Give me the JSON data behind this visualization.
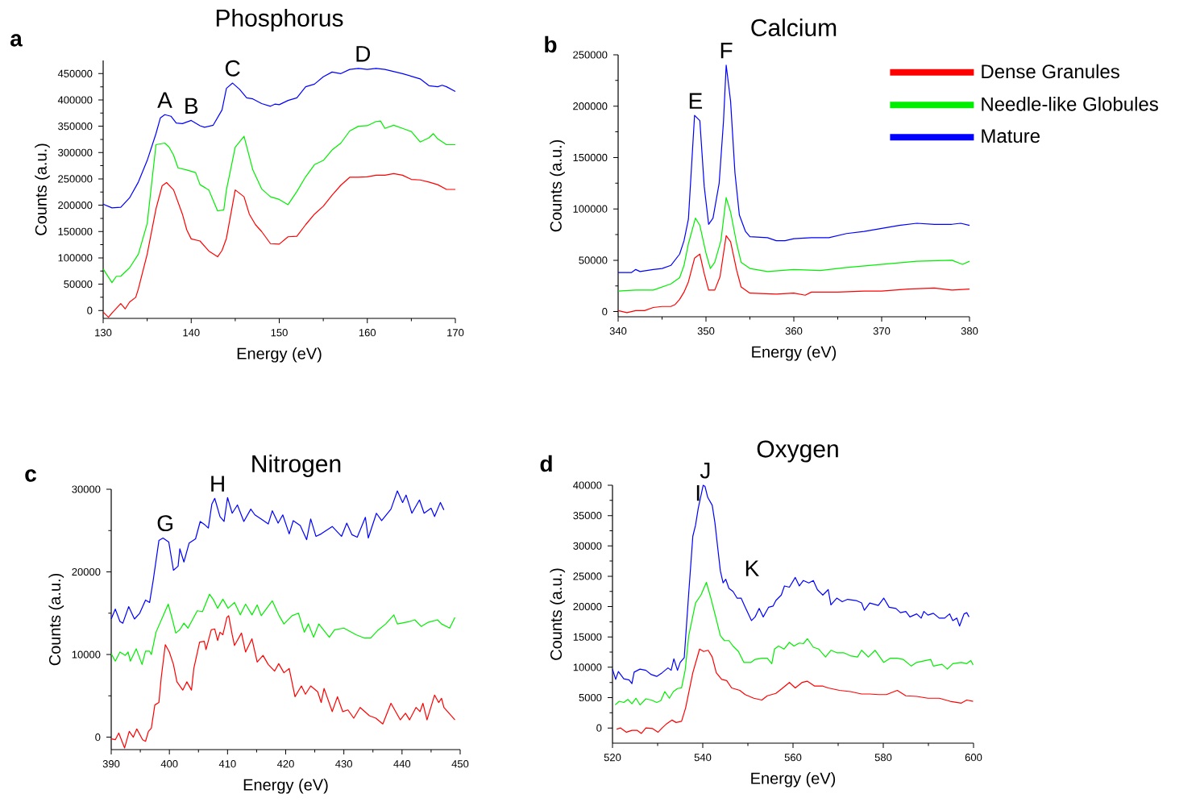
{
  "chart_data": [
    {
      "type": "line",
      "title": "Phosphorus",
      "xlabel": "Energy (eV)",
      "ylabel": "Counts (a.u.)",
      "xlim": [
        130,
        170
      ],
      "ylim": [
        -15000,
        475000
      ],
      "xticks": [
        130,
        140,
        150,
        160,
        170
      ],
      "yticks": [
        0,
        50000,
        100000,
        150000,
        200000,
        250000,
        300000,
        350000,
        400000,
        450000
      ],
      "annotations": [
        "a",
        {
          "text": "A",
          "x": 137,
          "y": 372000
        },
        {
          "text": "B",
          "x": 140,
          "y": 361000
        },
        {
          "text": "C",
          "x": 144.7,
          "y": 432000
        },
        {
          "text": "D",
          "x": 159.5,
          "y": 460000
        }
      ],
      "series": [
        {
          "color": "#ff0000",
          "x": [
            130,
            130.6,
            131,
            132,
            132.5,
            133,
            133.7,
            134,
            135,
            136,
            136.7,
            137.2,
            138,
            139,
            139.5,
            140,
            141,
            142,
            143,
            143.5,
            144,
            145,
            146,
            146.6,
            147.3,
            148,
            149,
            150,
            151,
            152,
            153,
            154,
            155,
            156,
            157,
            158,
            159,
            160,
            161,
            162,
            163,
            164,
            165,
            166,
            167,
            168,
            169,
            170
          ],
          "values": [
            -3000,
            -13000,
            -5000,
            13000,
            3000,
            16000,
            25000,
            41000,
            107000,
            193000,
            237000,
            243000,
            229000,
            183000,
            153000,
            136000,
            132000,
            113000,
            102000,
            114000,
            137000,
            229000,
            216000,
            183000,
            163000,
            150000,
            127000,
            126000,
            140000,
            141000,
            163000,
            183000,
            198000,
            219000,
            238000,
            253000,
            253000,
            254000,
            257000,
            257000,
            260000,
            257000,
            249000,
            248000,
            244000,
            239000,
            230000,
            230000
          ]
        },
        {
          "color": "#00ee00",
          "x": [
            130,
            131,
            131.5,
            132,
            133,
            134,
            135,
            136,
            137,
            137.5,
            138,
            138.5,
            139.5,
            140.5,
            141,
            142,
            142.5,
            143,
            143.7,
            144,
            145,
            146,
            147,
            148,
            149,
            150,
            151,
            152,
            153,
            154,
            155,
            156,
            157,
            158,
            159,
            160,
            161,
            161.5,
            162,
            163,
            164,
            165,
            166,
            167,
            167.5,
            168,
            169,
            170
          ],
          "values": [
            79000,
            53000,
            65000,
            65000,
            81000,
            107000,
            165000,
            315000,
            318000,
            310000,
            295000,
            271000,
            267000,
            262000,
            239000,
            229000,
            209000,
            189000,
            191000,
            229000,
            310000,
            331000,
            267000,
            231000,
            216000,
            211000,
            201000,
            226000,
            254000,
            277000,
            285000,
            305000,
            318000,
            341000,
            350000,
            351000,
            359000,
            360000,
            346000,
            352000,
            346000,
            340000,
            320000,
            328000,
            336000,
            326000,
            315000,
            315000
          ]
        },
        {
          "color": "#0000ff",
          "x": [
            130,
            131,
            132,
            133,
            134,
            135,
            136,
            136.5,
            137,
            137.7,
            138.3,
            139,
            140,
            141,
            141.5,
            142.5,
            143.5,
            144,
            144.7,
            145.5,
            146.3,
            147,
            148,
            149,
            149.5,
            150,
            151,
            152,
            153,
            154,
            155,
            156,
            157,
            158,
            159,
            160,
            161,
            162,
            163,
            164,
            165,
            166,
            167,
            168,
            168.5,
            169,
            170
          ],
          "values": [
            202000,
            195000,
            196000,
            214000,
            244000,
            285000,
            336000,
            366000,
            372000,
            369000,
            356000,
            355000,
            361000,
            351000,
            348000,
            352000,
            381000,
            422000,
            432000,
            420000,
            404000,
            402000,
            393000,
            388000,
            392000,
            391000,
            399000,
            404000,
            425000,
            430000,
            444000,
            453000,
            450000,
            458000,
            460000,
            458000,
            460000,
            458000,
            454000,
            450000,
            445000,
            440000,
            427000,
            425000,
            428000,
            425000,
            416000
          ]
        }
      ]
    },
    {
      "type": "line",
      "title": "Calcium",
      "xlabel": "Energy (eV)",
      "ylabel": "Counts (a.u.)",
      "legend": "top right",
      "xlim": [
        340,
        380
      ],
      "ylim": [
        -5000,
        250000
      ],
      "xticks": [
        340,
        350,
        360,
        370,
        380
      ],
      "yticks": [
        0,
        50000,
        100000,
        150000,
        200000,
        250000
      ],
      "annotations": [
        "b",
        {
          "text": "E",
          "x": 348.8,
          "y": 191000
        },
        {
          "text": "F",
          "x": 352.3,
          "y": 240000
        }
      ],
      "series": [
        {
          "name": "Dense Granules",
          "color": "#ff0000",
          "x": [
            340,
            341,
            342,
            343,
            344,
            345,
            346,
            346.5,
            347,
            347.5,
            348,
            348.7,
            349.3,
            349.8,
            350.3,
            351,
            351.6,
            352.3,
            352.8,
            353.5,
            354,
            355,
            358,
            360,
            361.3,
            362,
            365,
            368,
            370,
            373,
            376,
            378,
            380
          ],
          "values": [
            1000,
            -1000,
            1000,
            1000,
            4000,
            5000,
            5000,
            7000,
            12000,
            19000,
            29000,
            52000,
            56000,
            37000,
            21000,
            21000,
            34000,
            74000,
            68000,
            40000,
            24000,
            18000,
            17000,
            18000,
            16000,
            19000,
            19000,
            20000,
            20000,
            22000,
            23000,
            21000,
            22000
          ]
        },
        {
          "name": "Needle-like Globules",
          "color": "#00ee00",
          "x": [
            340,
            342,
            344,
            346,
            347,
            347.5,
            348,
            348.8,
            349.3,
            350,
            350.5,
            351,
            351.7,
            352.3,
            352.8,
            353.5,
            354,
            355,
            357,
            360,
            363,
            366,
            370,
            374,
            378,
            379.2,
            380
          ],
          "values": [
            20000,
            21000,
            21000,
            27000,
            33000,
            45000,
            66000,
            91000,
            84000,
            57000,
            42000,
            48000,
            69000,
            111000,
            97000,
            66000,
            48000,
            42000,
            39000,
            41000,
            40000,
            43000,
            46000,
            49000,
            50000,
            46000,
            49000
          ]
        },
        {
          "name": "Mature",
          "color": "#0000ff",
          "x": [
            340,
            341.5,
            342,
            342.5,
            344,
            345,
            346,
            347,
            347.5,
            348,
            348.7,
            349.3,
            349.8,
            350.3,
            350.8,
            351.5,
            352,
            352.3,
            352.8,
            353.3,
            353.8,
            354.5,
            355,
            357,
            358,
            359,
            360,
            362,
            364,
            366,
            368,
            370,
            372,
            374,
            376,
            378,
            379,
            380
          ],
          "values": [
            38000,
            38000,
            41000,
            39000,
            41000,
            42000,
            45000,
            56000,
            69000,
            90000,
            191000,
            186000,
            122000,
            85000,
            91000,
            125000,
            186000,
            240000,
            205000,
            135000,
            94000,
            78000,
            73000,
            72000,
            69000,
            69000,
            71000,
            72000,
            72000,
            76000,
            78000,
            81000,
            84000,
            86000,
            85000,
            85000,
            86000,
            84000
          ]
        }
      ]
    },
    {
      "type": "line",
      "title": "Nitrogen",
      "xlabel": "Energy (eV)",
      "ylabel": "Counts (a.u.)",
      "xlim": [
        390,
        450
      ],
      "ylim": [
        -1500,
        30000
      ],
      "xticks": [
        390,
        400,
        410,
        420,
        430,
        440,
        450
      ],
      "yticks": [
        0,
        10000,
        20000,
        30000
      ],
      "annotations": [
        "c",
        {
          "text": "G",
          "x": 399.3,
          "y": 24100
        },
        {
          "text": "H",
          "x": 408.3,
          "y": 28900
        }
      ],
      "series": [
        {
          "color": "#ff0000",
          "x": [
            390.0,
            390.7,
            391.3,
            392.3,
            393.1,
            393.8,
            394.4,
            395.4,
            395.9,
            396.4,
            396.9,
            397.5,
            398.2,
            398.6,
            399.3,
            400.0,
            400.7,
            401.3,
            402.3,
            403.0,
            403.8,
            404.2,
            405.2,
            406.0,
            406.3,
            407.2,
            407.8,
            408.3,
            408.7,
            409.2,
            409.9,
            410.2,
            410.8,
            411.2,
            412.4,
            413.1,
            414.2,
            415.1,
            416.1,
            417.0,
            418.1,
            418.8,
            419.7,
            420.6,
            421.6,
            422.7,
            423.4,
            424.3,
            425.5,
            426.1,
            426.6,
            428.0,
            428.9,
            429.8,
            430.7,
            431.7,
            432.8,
            434.4,
            435.5,
            436.7,
            438.1,
            439.7,
            440.6,
            441.3,
            442.4,
            443.1,
            443.6,
            444.3,
            445.6,
            446.3,
            446.8,
            447.2,
            449.1
          ],
          "values": [
            -200,
            -300,
            500,
            -1300,
            700,
            0,
            1000,
            -300,
            -500,
            700,
            1100,
            3900,
            4200,
            7200,
            11200,
            10300,
            8800,
            6700,
            5700,
            6700,
            5700,
            8300,
            11500,
            11600,
            10600,
            13000,
            13100,
            11700,
            12700,
            12400,
            14500,
            14700,
            12400,
            11100,
            12600,
            10300,
            11900,
            9100,
            9900,
            8800,
            8000,
            8900,
            7800,
            8300,
            4900,
            6200,
            5200,
            6200,
            5500,
            4200,
            5900,
            3100,
            4900,
            3100,
            3300,
            2300,
            3600,
            2600,
            2300,
            1600,
            4100,
            2100,
            2900,
            2100,
            3600,
            3100,
            4100,
            2100,
            5100,
            4200,
            4700,
            3600,
            2100
          ]
        },
        {
          "color": "#00ee00",
          "x": [
            390,
            390.7,
            391.5,
            392.4,
            392.9,
            393.3,
            394.3,
            395.3,
            395.9,
            396.6,
            396.9,
            397.7,
            399.8,
            400.5,
            401.1,
            401.8,
            402.5,
            403.2,
            404.8,
            405.7,
            406.9,
            407.6,
            408.3,
            409.2,
            410.1,
            411.2,
            412.2,
            413.1,
            414.2,
            415.1,
            415.8,
            417.7,
            418.8,
            419.7,
            421.1,
            422.2,
            423.2,
            423.9,
            424.8,
            425.7,
            427.5,
            428.4,
            430.0,
            432.1,
            433.5,
            434.6,
            435.8,
            437.2,
            438.6,
            439.2,
            441.3,
            442.2,
            443.3,
            444.5,
            446.1,
            446.8,
            448.2,
            449.1
          ],
          "values": [
            10100,
            9200,
            10300,
            9900,
            10300,
            9200,
            10700,
            8800,
            10400,
            10400,
            10000,
            12700,
            16100,
            14300,
            12600,
            13000,
            13800,
            13200,
            15300,
            15200,
            17300,
            16600,
            15600,
            16700,
            15600,
            16300,
            14800,
            16100,
            14800,
            16000,
            14700,
            16500,
            14800,
            13700,
            14700,
            15000,
            12700,
            13700,
            12100,
            13700,
            12100,
            13000,
            13200,
            12400,
            12000,
            12000,
            12900,
            13700,
            14800,
            13700,
            14000,
            14200,
            13400,
            13900,
            14200,
            13700,
            13200,
            14500
          ]
        },
        {
          "color": "#0000ff",
          "x": [
            390,
            390.7,
            391.5,
            392.0,
            393.0,
            394.0,
            394.9,
            395.9,
            396.6,
            397.2,
            398.2,
            398.9,
            399.9,
            400.7,
            401.5,
            401.8,
            402.5,
            403.4,
            404.5,
            405.3,
            406.1,
            406.7,
            407.3,
            407.8,
            408.7,
            409.4,
            410.0,
            410.8,
            411.7,
            412.8,
            414.0,
            414.7,
            415.8,
            417.0,
            417.7,
            418.7,
            419.5,
            420.6,
            421.3,
            422.5,
            423.6,
            424.3,
            425.2,
            426.1,
            428.0,
            429.6,
            430.5,
            431.4,
            432.3,
            433.7,
            434.2,
            435.6,
            436.5,
            438.1,
            439.2,
            440.1,
            440.7,
            441.7,
            443.0,
            443.8,
            445.0,
            445.6,
            446.6,
            447.2
          ],
          "values": [
            14300,
            15500,
            14000,
            13800,
            15800,
            14300,
            15000,
            16600,
            16300,
            18900,
            23800,
            24100,
            23600,
            20200,
            20700,
            22800,
            21200,
            23500,
            24000,
            26100,
            25700,
            25300,
            28200,
            28900,
            26700,
            26100,
            29000,
            27100,
            28100,
            26100,
            27600,
            26900,
            26400,
            25800,
            27400,
            25900,
            26900,
            24600,
            26200,
            25600,
            23900,
            26400,
            24300,
            24600,
            25500,
            24300,
            25900,
            24500,
            24200,
            26600,
            24100,
            27100,
            26200,
            27600,
            29800,
            28400,
            29300,
            27100,
            28700,
            27100,
            27700,
            26700,
            28400,
            27500
          ]
        }
      ]
    },
    {
      "type": "line",
      "title": "Oxygen",
      "xlabel": "Energy (eV)",
      "ylabel": "Counts (a.u.)",
      "xlim": [
        520,
        600
      ],
      "ylim": [
        -2500,
        40000
      ],
      "xticks": [
        520,
        540,
        560,
        580,
        600
      ],
      "yticks": [
        0,
        5000,
        10000,
        15000,
        20000,
        25000,
        30000,
        35000,
        40000
      ],
      "annotations": [
        "d",
        "I",
        {
          "text": "J",
          "x": 540.6,
          "y": 40000
        },
        "K"
      ],
      "series": [
        {
          "color": "#ff0000",
          "x": [
            520.9,
            521.8,
            523.1,
            524.3,
            525.5,
            526.4,
            527.4,
            528.9,
            530.1,
            531.0,
            532.0,
            533.2,
            534.1,
            535.3,
            536.2,
            537.8,
            539.3,
            540.2,
            541.2,
            542.1,
            543.0,
            544.2,
            545.3,
            546.4,
            548.2,
            549.4,
            551.3,
            553.1,
            554.3,
            556.2,
            557.4,
            559.2,
            560.5,
            562.0,
            563.2,
            564.8,
            566.6,
            567.8,
            570.3,
            572.7,
            575.2,
            577.0,
            578.9,
            580.7,
            583.1,
            585.0,
            587.4,
            589.9,
            592.4,
            594.8,
            597.3,
            598.5,
            599.9
          ],
          "values": [
            -200,
            0,
            -700,
            -400,
            -400,
            -900,
            0,
            -100,
            -700,
            0,
            700,
            1300,
            900,
            1100,
            3300,
            9100,
            13000,
            12600,
            12800,
            11700,
            9100,
            8000,
            7800,
            6600,
            6200,
            5500,
            4900,
            4600,
            5300,
            5700,
            6400,
            7500,
            6600,
            7500,
            7700,
            6900,
            6900,
            6600,
            6200,
            6000,
            5600,
            5600,
            5500,
            5500,
            6200,
            5300,
            5200,
            4900,
            4900,
            4400,
            4100,
            4600,
            4400
          ]
        },
        {
          "color": "#00ee00",
          "x": [
            520.6,
            521.5,
            522.5,
            523.4,
            524.3,
            525.2,
            526.1,
            527.4,
            528.6,
            529.8,
            530.7,
            531.6,
            532.6,
            533.5,
            534.4,
            535.3,
            536.1,
            536.9,
            538.4,
            539.6,
            540.8,
            541.8,
            543.0,
            543.9,
            544.8,
            545.8,
            546.7,
            547.9,
            549.1,
            550.7,
            551.6,
            553.1,
            554.3,
            555.3,
            555.9,
            556.8,
            558.0,
            559.2,
            560.2,
            561.4,
            562.3,
            563.2,
            564.5,
            565.7,
            567.2,
            568.4,
            569.7,
            571.2,
            572.7,
            574.3,
            575.2,
            576.7,
            578.2,
            580.1,
            581.6,
            583.1,
            584.4,
            586.2,
            587.4,
            590.5,
            591.1,
            593.0,
            594.2,
            595.4,
            597.3,
            598.5,
            599.4,
            599.9
          ],
          "values": [
            3800,
            4400,
            4200,
            4700,
            4000,
            4900,
            3800,
            4800,
            4600,
            4200,
            4500,
            6000,
            4900,
            6000,
            6500,
            6600,
            9500,
            15200,
            20600,
            21900,
            24000,
            21400,
            17900,
            15200,
            14400,
            14400,
            13500,
            12600,
            10800,
            10800,
            11300,
            11500,
            11500,
            10600,
            13000,
            13500,
            13000,
            14100,
            13500,
            14000,
            13900,
            14700,
            13300,
            13000,
            11700,
            12800,
            12400,
            12400,
            11900,
            11700,
            12800,
            11700,
            12800,
            10800,
            11500,
            11500,
            11300,
            10200,
            10800,
            11300,
            10200,
            10500,
            9700,
            10600,
            10800,
            10600,
            11100,
            10400
          ]
        },
        {
          "color": "#0000ff",
          "x": [
            520.0,
            520.7,
            521.3,
            522.5,
            523.7,
            524.3,
            524.8,
            526.1,
            527.4,
            528.6,
            529.8,
            531.0,
            532.3,
            533.0,
            533.6,
            534.4,
            535.0,
            535.9,
            536.9,
            537.8,
            538.4,
            539.0,
            540.1,
            540.5,
            541.1,
            542.1,
            542.7,
            543.3,
            543.9,
            544.5,
            545.1,
            545.8,
            546.7,
            547.6,
            548.5,
            549.4,
            550.8,
            551.6,
            552.5,
            553.4,
            554.6,
            555.6,
            556.2,
            557.4,
            558.1,
            559.2,
            560.5,
            561.4,
            562.3,
            563.5,
            564.5,
            565.4,
            566.6,
            567.8,
            568.4,
            569.7,
            570.9,
            572.1,
            574.0,
            575.2,
            575.8,
            577.0,
            578.9,
            580.1,
            581.3,
            582.8,
            583.8,
            585.0,
            585.9,
            587.4,
            588.4,
            589.0,
            589.9,
            591.1,
            592.4,
            593.6,
            594.7,
            595.4,
            596.3,
            596.9,
            597.9,
            598.5,
            599.0
          ],
          "values": [
            9700,
            8000,
            9300,
            8100,
            7900,
            7300,
            9200,
            9700,
            9500,
            8800,
            8500,
            9100,
            9900,
            9500,
            11400,
            9500,
            10800,
            11600,
            22300,
            31600,
            33400,
            36200,
            40000,
            39800,
            38000,
            36700,
            33800,
            29800,
            25900,
            23900,
            24500,
            23000,
            22500,
            21400,
            21400,
            19900,
            17700,
            18300,
            19700,
            18300,
            19900,
            20100,
            21000,
            21900,
            23400,
            23200,
            24800,
            23400,
            24300,
            23900,
            24300,
            22800,
            21900,
            22800,
            20300,
            21400,
            20800,
            21200,
            21000,
            20600,
            19400,
            20600,
            20200,
            21400,
            19900,
            19700,
            19000,
            19200,
            18300,
            18800,
            18100,
            19200,
            18600,
            18900,
            18100,
            18100,
            18800,
            17700,
            18100,
            16800,
            18800,
            19000,
            18300
          ]
        }
      ]
    }
  ]
}
